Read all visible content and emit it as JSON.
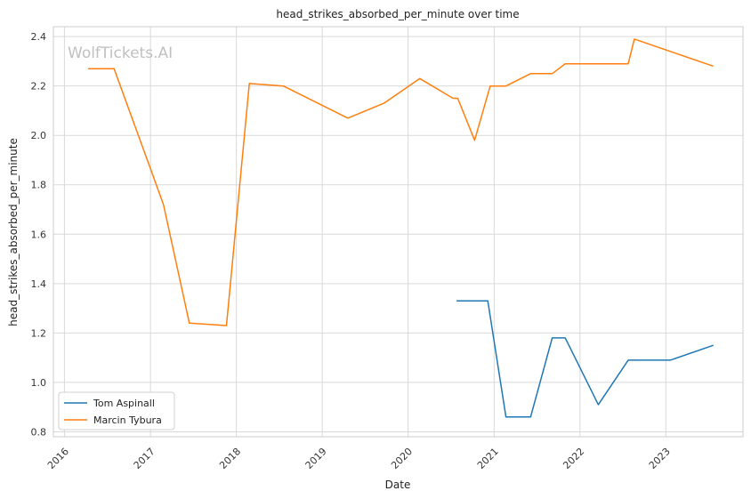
{
  "watermark": "WolfTickets.AI",
  "chart_data": {
    "type": "line",
    "title": "head_strikes_absorbed_per_minute over time",
    "xlabel": "Date",
    "ylabel": "head_strikes_absorbed_per_minute",
    "x_ticks": [
      "2016",
      "2017",
      "2018",
      "2019",
      "2020",
      "2021",
      "2022",
      "2023"
    ],
    "y_ticks": [
      "0.8",
      "1.0",
      "1.2",
      "1.4",
      "1.6",
      "1.8",
      "2.0",
      "2.2",
      "2.4"
    ],
    "xlim": [
      "2015-11-15",
      "2023-11-25"
    ],
    "ylim": [
      0.78,
      2.44
    ],
    "grid": true,
    "legend_position": "lower-left",
    "series": [
      {
        "name": "Tom Aspinall",
        "color": "#1f77b4",
        "points": [
          [
            "2020-07-25",
            1.33
          ],
          [
            "2020-12-05",
            1.33
          ],
          [
            "2021-02-20",
            0.86
          ],
          [
            "2021-06-05",
            0.86
          ],
          [
            "2021-09-05",
            1.18
          ],
          [
            "2021-10-30",
            1.18
          ],
          [
            "2022-03-20",
            0.91
          ],
          [
            "2022-07-25",
            1.09
          ],
          [
            "2023-01-20",
            1.09
          ],
          [
            "2023-07-22",
            1.15
          ]
        ]
      },
      {
        "name": "Marcin Tybura",
        "color": "#ff7f0e",
        "points": [
          [
            "2016-04-10",
            2.27
          ],
          [
            "2016-07-30",
            2.27
          ],
          [
            "2016-12-30",
            1.87
          ],
          [
            "2017-02-25",
            1.72
          ],
          [
            "2017-06-15",
            1.24
          ],
          [
            "2017-11-20",
            1.23
          ],
          [
            "2018-02-25",
            2.21
          ],
          [
            "2018-07-20",
            2.2
          ],
          [
            "2019-04-20",
            2.07
          ],
          [
            "2019-09-20",
            2.13
          ],
          [
            "2020-02-20",
            2.23
          ],
          [
            "2020-07-10",
            2.15
          ],
          [
            "2020-07-30",
            2.15
          ],
          [
            "2020-10-10",
            1.98
          ],
          [
            "2020-12-15",
            2.2
          ],
          [
            "2021-02-20",
            2.2
          ],
          [
            "2021-06-05",
            2.25
          ],
          [
            "2021-09-05",
            2.25
          ],
          [
            "2021-10-30",
            2.29
          ],
          [
            "2022-07-25",
            2.29
          ],
          [
            "2022-08-20",
            2.39
          ],
          [
            "2023-01-20",
            2.34
          ],
          [
            "2023-07-22",
            2.28
          ]
        ]
      }
    ]
  }
}
